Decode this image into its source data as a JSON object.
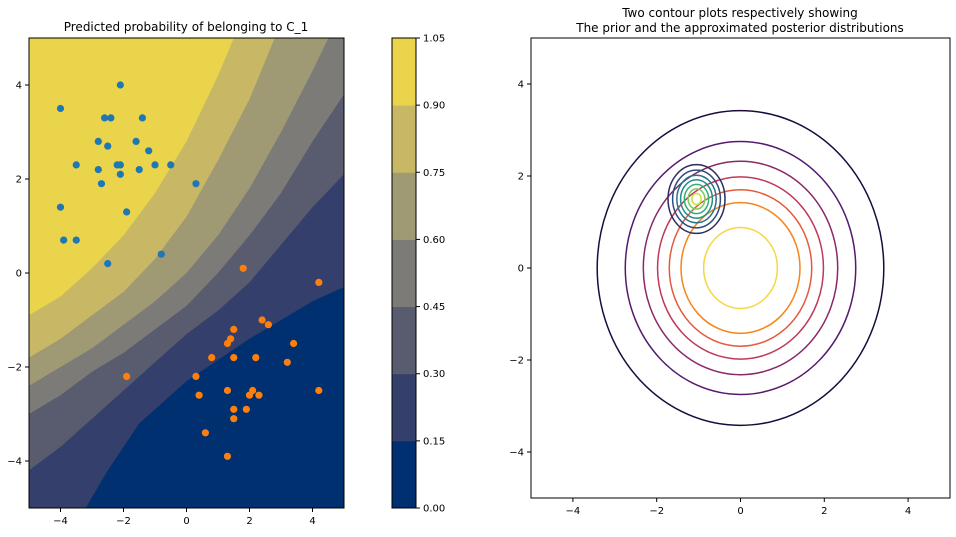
{
  "chart_data": [
    {
      "type": "filled-contour-scatter",
      "title": "Predicted probability of belonging to C_1",
      "xlim": [
        -5,
        5
      ],
      "ylim": [
        -5,
        5
      ],
      "xticks": [
        -4,
        -2,
        0,
        2,
        4
      ],
      "yticks": [
        -4,
        -2,
        0,
        2,
        4
      ],
      "grid": false,
      "colorbar": {
        "levels": [
          0.0,
          0.15,
          0.3,
          0.45,
          0.6,
          0.75,
          0.9,
          1.05
        ],
        "tick_labels": [
          "0.00",
          "0.15",
          "0.30",
          "0.45",
          "0.60",
          "0.75",
          "0.90",
          "1.05"
        ],
        "colors": [
          "#00306f",
          "#343f6b",
          "#595b6e",
          "#7c7b78",
          "#a09a74",
          "#c8b866",
          "#e9d44c"
        ]
      },
      "boundary_lines": [
        {
          "level": 0.15,
          "points": [
            [
              -3.2,
              -5
            ],
            [
              -2.5,
              -4.2
            ],
            [
              -1.5,
              -3.2
            ],
            [
              0,
              -2.3
            ],
            [
              2,
              -1.4
            ],
            [
              4,
              -0.6
            ],
            [
              5,
              -0.3
            ]
          ]
        },
        {
          "level": 0.3,
          "points": [
            [
              -5,
              -4.2
            ],
            [
              -4,
              -3.7
            ],
            [
              -3,
              -3.1
            ],
            [
              -2,
              -2.5
            ],
            [
              -1,
              -1.9
            ],
            [
              0,
              -1.3
            ],
            [
              1,
              -0.8
            ],
            [
              2,
              -0.2
            ],
            [
              3,
              0.6
            ],
            [
              4,
              1.4
            ],
            [
              5,
              2.1
            ]
          ]
        },
        {
          "level": 0.45,
          "points": [
            [
              -5,
              -3.0
            ],
            [
              -4,
              -2.6
            ],
            [
              -3,
              -2.1
            ],
            [
              -2,
              -1.7
            ],
            [
              -1,
              -1.2
            ],
            [
              0,
              -0.7
            ],
            [
              1,
              0
            ],
            [
              2,
              0.8
            ],
            [
              3,
              1.7
            ],
            [
              4,
              2.8
            ],
            [
              5,
              3.8
            ]
          ]
        },
        {
          "level": 0.6,
          "points": [
            [
              -5,
              -2.4
            ],
            [
              -4,
              -2.0
            ],
            [
              -3,
              -1.6
            ],
            [
              -2,
              -1.1
            ],
            [
              -1,
              -0.6
            ],
            [
              0,
              0
            ],
            [
              1,
              0.8
            ],
            [
              2,
              1.8
            ],
            [
              3,
              3.0
            ],
            [
              4,
              4.3
            ],
            [
              4.5,
              5
            ]
          ]
        },
        {
          "level": 0.75,
          "points": [
            [
              -5,
              -1.8
            ],
            [
              -4,
              -1.4
            ],
            [
              -3,
              -0.9
            ],
            [
              -2,
              -0.4
            ],
            [
              -1,
              0.3
            ],
            [
              0,
              1.2
            ],
            [
              1,
              2.4
            ],
            [
              2,
              3.7
            ],
            [
              2.8,
              5
            ]
          ]
        },
        {
          "level": 0.9,
          "points": [
            [
              -5,
              -0.9
            ],
            [
              -4,
              -0.5
            ],
            [
              -3,
              0.1
            ],
            [
              -2,
              0.8
            ],
            [
              -1,
              1.7
            ],
            [
              0,
              2.8
            ],
            [
              1,
              4.2
            ],
            [
              1.5,
              5
            ]
          ]
        }
      ],
      "series": [
        {
          "color": "#1f77b4",
          "points": [
            [
              -4.0,
              3.5
            ],
            [
              -2.1,
              4.0
            ],
            [
              -2.6,
              3.3
            ],
            [
              -2.4,
              3.3
            ],
            [
              -1.4,
              3.3
            ],
            [
              -1.2,
              2.6
            ],
            [
              -2.5,
              2.7
            ],
            [
              -2.8,
              2.8
            ],
            [
              -1.6,
              2.8
            ],
            [
              -3.5,
              2.3
            ],
            [
              -2.2,
              2.3
            ],
            [
              -2.1,
              2.3
            ],
            [
              -1.5,
              2.2
            ],
            [
              -1.0,
              2.3
            ],
            [
              -0.5,
              2.3
            ],
            [
              -2.8,
              2.2
            ],
            [
              -2.1,
              2.1
            ],
            [
              -2.7,
              1.9
            ],
            [
              0.3,
              1.9
            ],
            [
              -4.0,
              1.4
            ],
            [
              -1.9,
              1.3
            ],
            [
              -3.5,
              0.7
            ],
            [
              -3.9,
              0.7
            ],
            [
              -0.8,
              0.4
            ],
            [
              -2.5,
              0.2
            ]
          ]
        },
        {
          "color": "#ff7f0e",
          "points": [
            [
              1.8,
              0.1
            ],
            [
              4.2,
              -0.2
            ],
            [
              2.4,
              -1.0
            ],
            [
              2.6,
              -1.1
            ],
            [
              1.5,
              -1.2
            ],
            [
              1.4,
              -1.4
            ],
            [
              1.3,
              -1.5
            ],
            [
              3.4,
              -1.5
            ],
            [
              0.8,
              -1.8
            ],
            [
              1.5,
              -1.8
            ],
            [
              2.2,
              -1.8
            ],
            [
              3.2,
              -1.9
            ],
            [
              -1.9,
              -2.2
            ],
            [
              0.3,
              -2.2
            ],
            [
              1.3,
              -2.5
            ],
            [
              2.1,
              -2.5
            ],
            [
              2.3,
              -2.6
            ],
            [
              4.2,
              -2.5
            ],
            [
              0.4,
              -2.6
            ],
            [
              2.0,
              -2.6
            ],
            [
              1.5,
              -2.9
            ],
            [
              1.9,
              -2.9
            ],
            [
              1.5,
              -3.1
            ],
            [
              0.6,
              -3.4
            ],
            [
              1.3,
              -3.9
            ]
          ]
        }
      ]
    },
    {
      "type": "contour",
      "title": "Two contour plots respectively showing\nThe prior and the approximated posterior distributions",
      "title_lines": [
        "Two contour plots respectively showing",
        "The prior and the approximated posterior distributions"
      ],
      "xlim": [
        -5,
        5
      ],
      "ylim": [
        -5,
        5
      ],
      "xticks": [
        -4,
        -2,
        0,
        2,
        4
      ],
      "yticks": [
        -4,
        -2,
        0,
        2,
        4
      ],
      "grid": false,
      "contours": [
        {
          "name": "prior",
          "center": [
            0,
            0
          ],
          "radii": [
            3.42,
            2.75,
            2.32,
            1.98,
            1.7,
            1.42,
            0.88
          ],
          "colors": [
            "#1c0a3f",
            "#551a6e",
            "#8a2868",
            "#c0395a",
            "#e35a3c",
            "#f5851b",
            "#f5d744"
          ]
        },
        {
          "name": "posterior",
          "center": [
            -1.05,
            1.5
          ],
          "radii": [
            0.68,
            0.57,
            0.47,
            0.38,
            0.29,
            0.2,
            0.11
          ],
          "colors": [
            "#2c2a5e",
            "#2e4d7f",
            "#2a7088",
            "#209089",
            "#35ad7b",
            "#7bc95c",
            "#c8e03d"
          ],
          "aspect": [
            1.0,
            1.1
          ]
        }
      ]
    }
  ]
}
